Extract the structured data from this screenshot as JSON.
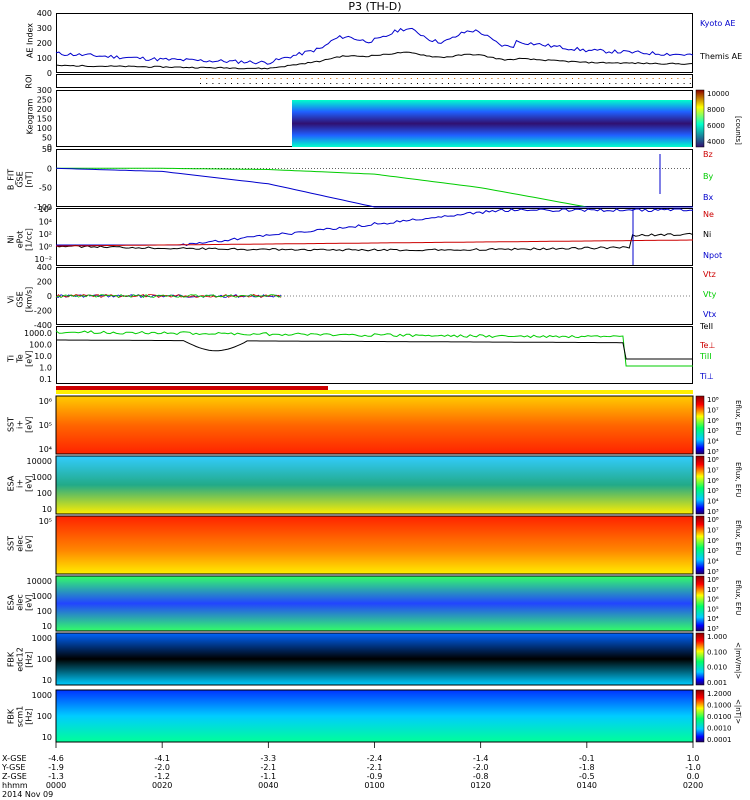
{
  "title": "P3 (TH-D)",
  "footer": {
    "row_labels": [
      "X-GSE",
      "Y-GSE",
      "Z-GSE",
      "hhmm",
      "2014 Nov 09"
    ],
    "ticks": [
      {
        "x": "-4.6",
        "y": "-1.9",
        "z": "-1.3",
        "t": "0000"
      },
      {
        "x": "-4.1",
        "y": "-2.0",
        "z": "-1.2",
        "t": "0020"
      },
      {
        "x": "-3.3",
        "y": "-2.1",
        "z": "-1.1",
        "t": "0040"
      },
      {
        "x": "-2.4",
        "y": "-2.1",
        "z": "-0.9",
        "t": "0100"
      },
      {
        "x": "-1.4",
        "y": "-2.0",
        "z": "-0.8",
        "t": "0120"
      },
      {
        "x": "-0.1",
        "y": "-1.8",
        "z": "-0.5",
        "t": "0140"
      },
      {
        "x": "1.0",
        "y": "-1.0",
        "z": "0.0",
        "t": "0200"
      }
    ]
  },
  "colors": {
    "kyoto": "#0000cc",
    "themis": "#000000",
    "bz": "#cc0000",
    "by": "#00cc00",
    "bx": "#0000cc",
    "ne": "#cc0000",
    "ni": "#000000",
    "npot": "#0000cc",
    "vtz": "#cc0000",
    "vty": "#00cc00",
    "vtx": "#0000cc",
    "teii": "#000000",
    "teperp": "#cc0000",
    "tiii": "#00cc00",
    "tiperp": "#0000cc"
  },
  "panels": {
    "ae": {
      "ylabel": "AE Index",
      "ticks": [
        "400",
        "300",
        "200",
        "100",
        "0"
      ],
      "legend": [
        "Kyoto AE",
        "Themis AE"
      ]
    },
    "roi": {
      "ylabel": "ROI"
    },
    "keogram": {
      "ylabel": "Keogram",
      "ticks": [
        "300",
        "250",
        "200",
        "150",
        "100",
        "50",
        "0"
      ],
      "cb_ticks": [
        "10000",
        "8000",
        "6000",
        "4000"
      ],
      "cb_label": "[counts]"
    },
    "bfit": {
      "ylabel": "B_FIT\nGSE\n[nT]",
      "ticks": [
        "50",
        "0",
        "-50",
        "-100"
      ],
      "legend": [
        "Bz",
        "By",
        "Bx"
      ]
    },
    "density": {
      "ylabel": "Ni\nePot\n[1/cc]",
      "ticks": [
        "10⁶",
        "10⁴",
        "10²",
        "10⁰",
        "10⁻²"
      ],
      "legend": [
        "Ne",
        "Ni",
        "Npot"
      ]
    },
    "velocity": {
      "ylabel": "Vi\nGSE\n[km/s]",
      "ticks": [
        "400",
        "200",
        "0",
        "-200",
        "-400"
      ],
      "legend": [
        "Vtz",
        "Vty",
        "Vtx"
      ]
    },
    "temp": {
      "ylabel": "Ti\nTe\n[eV]",
      "ticks": [
        "1000.0",
        "100.0",
        "10.0",
        "1.0",
        "0.1"
      ],
      "legend": [
        "TeII",
        "Te⊥",
        "TiII",
        "Ti⊥"
      ]
    },
    "sst_i": {
      "ylabel": "SST\ni+\n[eV]",
      "ticks": [
        "10⁶",
        "10⁵",
        "10⁴"
      ],
      "cb_ticks": [
        "10⁸",
        "10⁷",
        "10⁶",
        "10⁵",
        "10⁴",
        "10³"
      ],
      "cb_label": "Eflux, EFU"
    },
    "esa_i": {
      "ylabel": "ESA\ni+\n[eV]",
      "ticks": [
        "10000",
        "1000",
        "100",
        "10"
      ],
      "cb_ticks": [
        "10⁸",
        "10⁷",
        "10⁶",
        "10⁵",
        "10⁴",
        "10³"
      ],
      "cb_label": "Eflux, EFU"
    },
    "sst_e": {
      "ylabel": "SST\nelec\n[eV]",
      "ticks": [
        "10⁵"
      ],
      "cb_ticks": [
        "10⁸",
        "10⁷",
        "10⁶",
        "10⁵",
        "10⁴",
        "10³"
      ],
      "cb_label": "Eflux, EFU"
    },
    "esa_e": {
      "ylabel": "ESA\nelec\n[eV]",
      "ticks": [
        "10000",
        "1000",
        "100",
        "10"
      ],
      "cb_ticks": [
        "10⁸",
        "10⁷",
        "10⁶",
        "10⁵",
        "10⁴",
        "10³"
      ],
      "cb_label": "Eflux, EFU"
    },
    "fbk_e": {
      "ylabel": "FBK\nedc12\n[Hz]",
      "ticks": [
        "1000",
        "100",
        "10"
      ],
      "cb_ticks": [
        "1.000",
        "0.100",
        "0.010",
        "0.001"
      ],
      "cb_label": "<|mV/m|>"
    },
    "fbk_b": {
      "ylabel": "FBK\nscm1\n[Hz]",
      "ticks": [
        "1000",
        "100",
        "10"
      ],
      "cb_ticks": [
        "1.2000",
        "0.1000",
        "0.0100",
        "0.0010",
        "0.0001"
      ],
      "cb_label": "<|nT|>"
    }
  },
  "chart_data": [
    {
      "type": "line",
      "title": "P3 (TH-D)",
      "ylabel": "AE Index",
      "ylim": [
        0,
        400
      ],
      "x": [
        "0000",
        "0020",
        "0040",
        "0100",
        "0120",
        "0140",
        "0200"
      ],
      "series": [
        {
          "name": "Kyoto AE",
          "values": [
            130,
            90,
            70,
            260,
            240,
            150,
            120
          ]
        },
        {
          "name": "Themis AE",
          "values": [
            50,
            40,
            30,
            130,
            110,
            70,
            60
          ]
        }
      ]
    },
    {
      "type": "line",
      "ylabel": "B_FIT GSE [nT]",
      "ylim": [
        -100,
        50
      ],
      "x": [
        "0000",
        "0020",
        "0040",
        "0100",
        "0120",
        "0140",
        "0200"
      ],
      "series": [
        {
          "name": "Bz",
          "values": [
            0,
            0,
            0,
            0,
            0,
            0,
            0
          ]
        },
        {
          "name": "By",
          "values": [
            0,
            0,
            -3,
            -15,
            -50,
            -100,
            -100
          ]
        },
        {
          "name": "Bx",
          "values": [
            0,
            -8,
            -40,
            -100,
            -100,
            -100,
            -100
          ]
        }
      ]
    },
    {
      "type": "line",
      "ylabel": "Vi GSE [km/s]",
      "ylim": [
        -400,
        400
      ],
      "x": [
        "0000",
        "0020",
        "0040"
      ],
      "series": [
        {
          "name": "Vtz",
          "values": [
            0,
            0,
            0
          ]
        },
        {
          "name": "Vty",
          "values": [
            0,
            0,
            0
          ]
        },
        {
          "name": "Vtx",
          "values": [
            0,
            0,
            0
          ]
        }
      ]
    },
    {
      "type": "heatmap",
      "ylabel": "Keogram",
      "ylim": [
        0,
        300
      ],
      "cb_range": [
        4000,
        10000
      ]
    },
    {
      "type": "heatmap",
      "ylabel": "SST i+ [eV]"
    },
    {
      "type": "heatmap",
      "ylabel": "ESA i+ [eV]"
    },
    {
      "type": "heatmap",
      "ylabel": "SST elec [eV]"
    },
    {
      "type": "heatmap",
      "ylabel": "ESA elec [eV]"
    },
    {
      "type": "heatmap",
      "ylabel": "FBK edc12 [Hz]"
    },
    {
      "type": "heatmap",
      "ylabel": "FBK scm1 [Hz]"
    }
  ]
}
